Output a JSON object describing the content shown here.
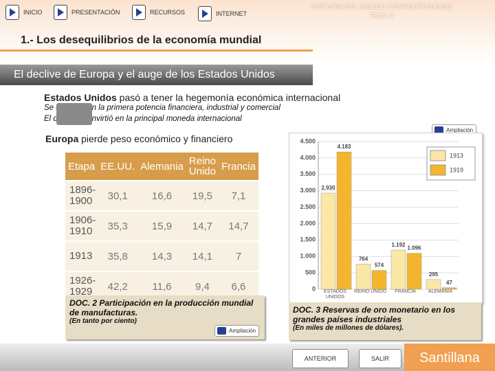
{
  "nav": {
    "buttons": [
      "INICIO",
      "PRESENTACIÓN",
      "RECURSOS",
      "INTERNET"
    ]
  },
  "header": {
    "subject": "HISTORIA DEL MUNDO CONTEMPORÁNEO",
    "unit": "TEMA 9"
  },
  "title": "1.- Los desequilibrios de la economía mundial",
  "banner": "El declive de Europa y el auge de los Estados Unidos",
  "points": {
    "usa": {
      "bold": "Estados Unidos",
      "text": " pasó a tener la hegemonía económica internacional"
    },
    "usa_details": [
      "Se convirtió en la primera potencia financiera, industrial y comercial",
      "El dólar se convirtió en la principal moneda internacional"
    ],
    "europe": {
      "bold": "Europa",
      "text": " pierde peso económico y financiero"
    }
  },
  "more_button": "Ampliación",
  "table": {
    "header": [
      "Etapa",
      "EE.UU.",
      "Alemania",
      "Reino Unido",
      "Francia"
    ],
    "rows": [
      [
        "1896-1900",
        "30,1",
        "16,6",
        "19,5",
        "7,1"
      ],
      [
        "1906-1910",
        "35,3",
        "15,9",
        "14,7",
        "14,7"
      ],
      [
        "1913",
        "35,8",
        "14,3",
        "14,1",
        "7"
      ],
      [
        "1926-1929",
        "42,2",
        "11,6",
        "9,4",
        "6,6"
      ]
    ],
    "caption": "DOC. 2 Participación en la producción mundial de manufacturas.",
    "note": "(En tanto por ciento)"
  },
  "chart_data": {
    "type": "bar",
    "categories": [
      "ESTADOS UNIDOS",
      "REINO UNIDO",
      "FRANCIA",
      "ALEMANIA"
    ],
    "series": [
      {
        "name": "1913",
        "color": "#fbe7a6",
        "values": [
          2930,
          764,
          1192,
          295
        ],
        "value_labels": [
          "2.930",
          "764",
          "1.192",
          "295"
        ]
      },
      {
        "name": "1919",
        "color": "#f4b52e",
        "values": [
          4183,
          574,
          1096,
          47
        ],
        "value_labels": [
          "4.183",
          "574",
          "1.096",
          "47"
        ]
      }
    ],
    "ylim": [
      0,
      4500
    ],
    "yticks": [
      0,
      {
        "value": 500,
        "label": "500"
      },
      {
        "value": 1000,
        "label": "1.000"
      },
      {
        "value": 1500,
        "label": "1.500"
      },
      {
        "value": 2000,
        "label": "2.000"
      },
      {
        "value": 2500,
        "label": "2.500"
      },
      {
        "value": 3000,
        "label": "3.000"
      },
      {
        "value": 3500,
        "label": "3.500"
      },
      {
        "value": 4000,
        "label": "4.000"
      },
      {
        "value": 4500,
        "label": "4.500"
      }
    ],
    "grid": true,
    "legend": "top-right",
    "caption": "DOC. 3 Reservas de oro monetario en los grandes países industriales",
    "note": "(En miles de millones de dólares)."
  },
  "footer": {
    "prev": "ANTERIOR",
    "exit": "SALIR",
    "brand": "Santillana"
  }
}
